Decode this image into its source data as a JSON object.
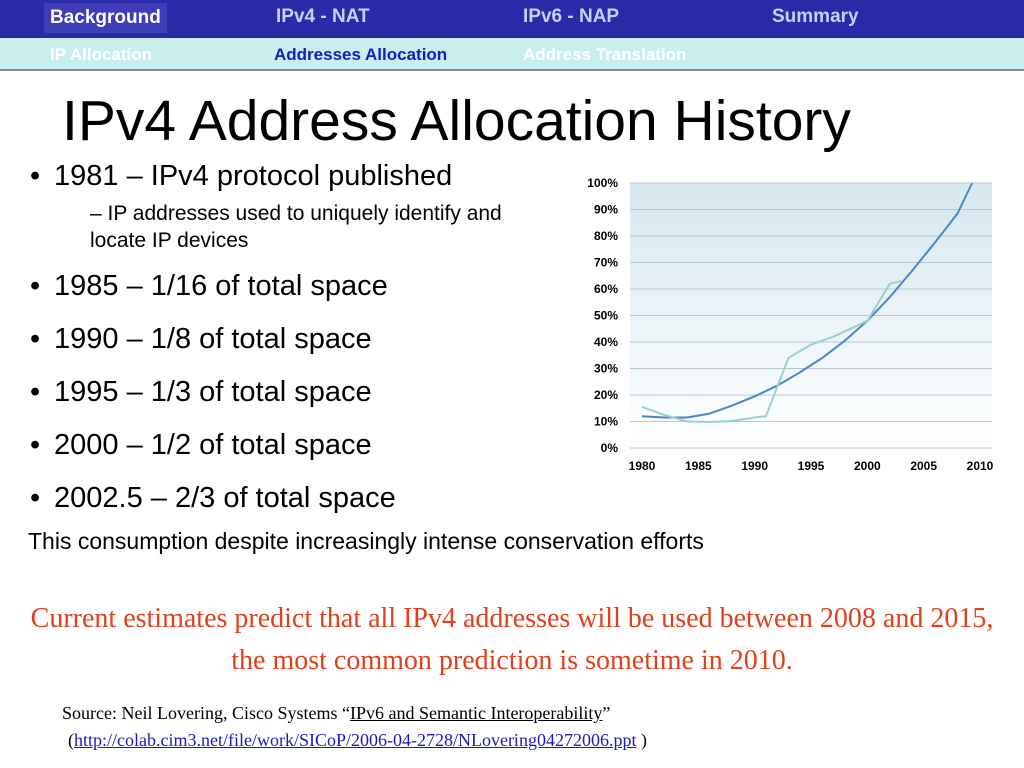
{
  "nav": {
    "tabs": [
      "Background",
      "IPv4 - NAT",
      "IPv6 - NAP",
      "Summary"
    ],
    "subtabs": [
      "IP Allocation",
      "Addresses Allocation",
      "Address Translation"
    ]
  },
  "slide": {
    "title": "IPv4 Address Allocation History",
    "bullet_char": "•",
    "bullets": [
      "1981 – IPv4 protocol published",
      "1985 – 1/16 of total space",
      "1990 – 1/8 of total space",
      "1995 – 1/3 of total space",
      "2000 – 1/2 of total space",
      "2002.5 – 2/3 of total space"
    ],
    "subbullet": "– IP addresses used to uniquely identify and locate IP devices",
    "consumption_note": "This consumption despite increasingly intense conservation efforts",
    "prediction": "Current estimates predict that all IPv4 addresses will be used between 2008 and 2015, the most common prediction is sometime in 2010.",
    "source_prefix": "Source: Neil Lovering, Cisco Systems “",
    "source_link_text": "IPv6 and Semantic Interoperability",
    "source_suffix": "”",
    "url_open": "(",
    "url": "http://colab.cim3.net/file/work/SICoP/2006-04-2728/NLovering04272006.ppt",
    "url_close": " )"
  },
  "colors": {
    "nav_bg": "#2a2aa8",
    "subnav_bg": "#c8eeee",
    "prediction_red": "#e2401c",
    "link_blue": "#1a1ac0",
    "fit_line": "#4a86c8",
    "actual_line": "#9ccfcf"
  },
  "chart_data": {
    "type": "line",
    "title": "",
    "xlabel": "",
    "ylabel": "",
    "x_ticks": [
      1980,
      1985,
      1990,
      1995,
      2000,
      2005,
      2010
    ],
    "y_ticks": [
      "0%",
      "10%",
      "20%",
      "30%",
      "40%",
      "50%",
      "60%",
      "70%",
      "80%",
      "90%",
      "100%"
    ],
    "xlim": [
      1980,
      2010
    ],
    "ylim": [
      0,
      100
    ],
    "grid": true,
    "series": [
      {
        "x": [
          1980,
          1982,
          1984,
          1986,
          1988,
          1990,
          1992,
          1994,
          1996,
          1998,
          2000,
          2002,
          2004,
          2006,
          2008,
          2009.3
        ],
        "y": [
          12,
          11.5,
          11.5,
          13,
          16,
          19.5,
          23.5,
          28.5,
          34,
          40.5,
          48,
          57,
          67,
          77.5,
          88.5,
          100
        ]
      },
      {
        "x": [
          1980,
          1982,
          1984,
          1986,
          1988,
          1990,
          1991,
          1993,
          1995,
          1997,
          2000,
          2002,
          2003
        ],
        "y": [
          15.5,
          12.5,
          10,
          9.8,
          10.2,
          11.5,
          12,
          34,
          39,
          42,
          48,
          62,
          63
        ]
      }
    ]
  }
}
